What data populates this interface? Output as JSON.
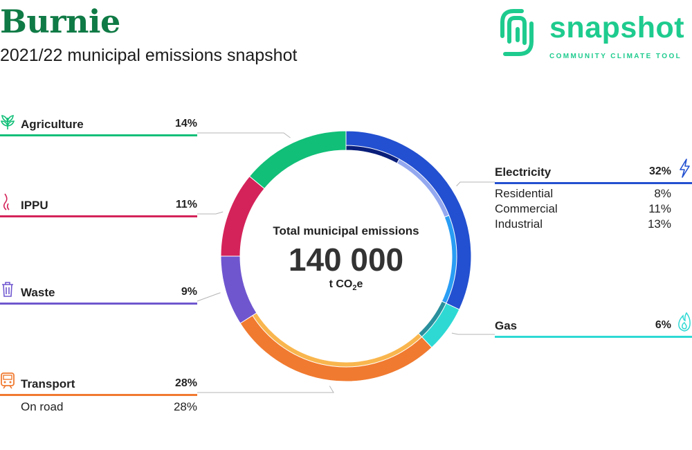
{
  "header": {
    "title": "Burnie",
    "subtitle": "2021/22 municipal emissions snapshot"
  },
  "logo": {
    "name": "snapshot",
    "tagline": "COMMUNITY CLIMATE TOOL",
    "color": "#1ecb8e"
  },
  "center": {
    "label": "Total municipal emissions",
    "value": "140 000",
    "unit_prefix": "t CO",
    "unit_sub": "2",
    "unit_suffix": "e"
  },
  "chart_data": {
    "type": "pie",
    "style": "donut",
    "title": "Total municipal emissions",
    "total": 140000,
    "total_unit": "t CO2e",
    "series": [
      {
        "name": "Electricity",
        "pct_label": "32%",
        "value": 32,
        "color": "#2350d0",
        "icon": "lightning-icon",
        "side": "right",
        "breakdown": [
          {
            "name": "Residential",
            "pct_label": "8%",
            "value": 8,
            "color": "#0a1f7a"
          },
          {
            "name": "Commercial",
            "pct_label": "11%",
            "value": 11,
            "color": "#93a8ef"
          },
          {
            "name": "Industrial",
            "pct_label": "13%",
            "value": 13,
            "color": "#2a9df4"
          }
        ]
      },
      {
        "name": "Gas",
        "pct_label": "6%",
        "value": 6,
        "color": "#2ed9d4",
        "icon": "flame-icon",
        "side": "right",
        "inner_color": "#2a8f9c"
      },
      {
        "name": "Transport",
        "pct_label": "28%",
        "value": 28,
        "color": "#f07a30",
        "icon": "train-icon",
        "side": "left",
        "breakdown": [
          {
            "name": "On road",
            "pct_label": "28%",
            "value": 28,
            "color": "#f9b64e"
          }
        ]
      },
      {
        "name": "Waste",
        "pct_label": "9%",
        "value": 9,
        "color": "#6f56cf",
        "icon": "bin-icon",
        "side": "left"
      },
      {
        "name": "IPPU",
        "pct_label": "11%",
        "value": 11,
        "color": "#d4235a",
        "icon": "factory-smoke-icon",
        "side": "left"
      },
      {
        "name": "Agriculture",
        "pct_label": "14%",
        "value": 14,
        "color": "#11bf78",
        "icon": "plant-icon",
        "side": "left"
      }
    ]
  }
}
